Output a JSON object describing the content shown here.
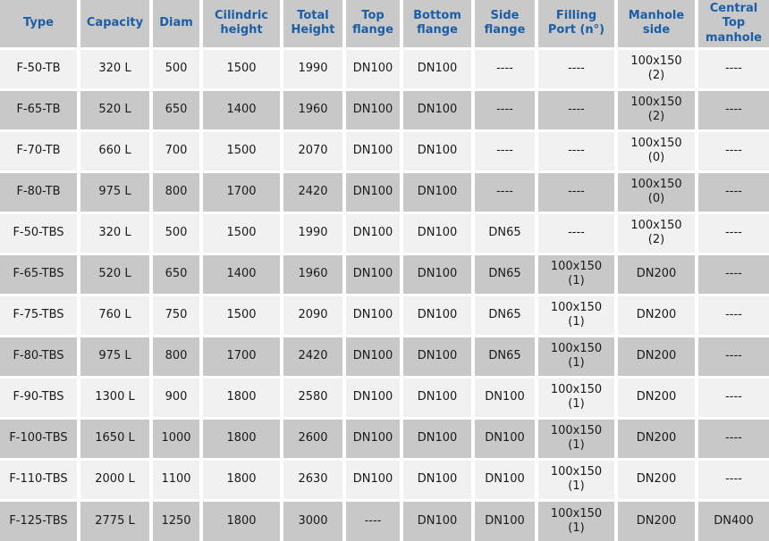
{
  "colors": {
    "header_bg": "#c9c9c9",
    "row_alt_bg": "#c8c8c8",
    "row_bg": "#f1f1f1",
    "header_text": "#1c5ea6",
    "body_text": "#1a1a1a",
    "separator": "#ffffff"
  },
  "table": {
    "headers": [
      "Type",
      "Capacity",
      "Diam",
      "Cilindric\nheight",
      "Total\nHeight",
      "Top\nflange",
      "Bottom\nflange",
      "Side\nflange",
      "Filling\nPort (n°)",
      "Manhole\nside",
      "Central\nTop\nmanhole"
    ],
    "rows": [
      {
        "cells": [
          "F-50-TB",
          "320 L",
          "500",
          "1500",
          "1990",
          "DN100",
          "DN100",
          "----",
          "----",
          "100x150\n(2)",
          "----"
        ]
      },
      {
        "cells": [
          "F-65-TB",
          "520 L",
          "650",
          "1400",
          "1960",
          "DN100",
          "DN100",
          "----",
          "----",
          "100x150\n(2)",
          "----"
        ]
      },
      {
        "cells": [
          "F-70-TB",
          "660 L",
          "700",
          "1500",
          "2070",
          "DN100",
          "DN100",
          "----",
          "----",
          "100x150\n(0)",
          "----"
        ]
      },
      {
        "cells": [
          "F-80-TB",
          "975 L",
          "800",
          "1700",
          "2420",
          "DN100",
          "DN100",
          "----",
          "----",
          "100x150\n(0)",
          "----"
        ]
      },
      {
        "cells": [
          "F-50-TBS",
          "320 L",
          "500",
          "1500",
          "1990",
          "DN100",
          "DN100",
          "DN65",
          "----",
          "100x150\n(2)",
          "----"
        ]
      },
      {
        "cells": [
          "F-65-TBS",
          "520 L",
          "650",
          "1400",
          "1960",
          "DN100",
          "DN100",
          "DN65",
          "100x150\n(1)",
          "DN200",
          "----"
        ]
      },
      {
        "cells": [
          "F-75-TBS",
          "760 L",
          "750",
          "1500",
          "2090",
          "DN100",
          "DN100",
          "DN65",
          "100x150\n(1)",
          "DN200",
          "----"
        ]
      },
      {
        "cells": [
          "F-80-TBS",
          "975 L",
          "800",
          "1700",
          "2420",
          "DN100",
          "DN100",
          "DN65",
          "100x150\n(1)",
          "DN200",
          "----"
        ]
      },
      {
        "cells": [
          "F-90-TBS",
          "1300 L",
          "900",
          "1800",
          "2580",
          "DN100",
          "DN100",
          "DN100",
          "100x150\n(1)",
          "DN200",
          "----"
        ]
      },
      {
        "cells": [
          "F-100-TBS",
          "1650 L",
          "1000",
          "1800",
          "2600",
          "DN100",
          "DN100",
          "DN100",
          "100x150\n(1)",
          "DN200",
          "----"
        ]
      },
      {
        "cells": [
          "F-110-TBS",
          "2000 L",
          "1100",
          "1800",
          "2630",
          "DN100",
          "DN100",
          "DN100",
          "100x150\n(1)",
          "DN200",
          "----"
        ]
      },
      {
        "cells": [
          "F-125-TBS",
          "2775 L",
          "1250",
          "1800",
          "3000",
          "----",
          "DN100",
          "DN100",
          "100x150\n(1)",
          "DN200",
          "DN400"
        ]
      }
    ]
  }
}
